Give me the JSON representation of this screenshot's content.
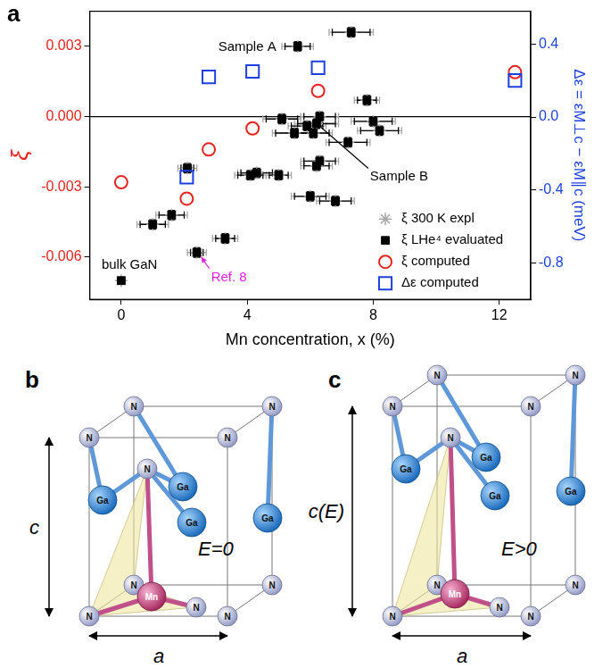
{
  "chart_data": {
    "type": "scatter",
    "panel_label": "a",
    "x_label": "Mn concentration, x (%)",
    "y_label": "ξ",
    "y2_label": "Δε = εM⊥c − εM∥c (meV)",
    "xlim": [
      -1,
      13
    ],
    "xticks": [
      0,
      4,
      8,
      12
    ],
    "ylim": [
      -0.0078,
      0.0045
    ],
    "yticks": [
      0.003,
      {
        "value": 0,
        "label": "0.000"
      },
      -0.003,
      -0.006
    ],
    "y2lim": [
      -1.0,
      0.58
    ],
    "y2ticks": [
      0.4,
      {
        "value": 0,
        "label": "0.0"
      },
      -0.4,
      -0.8
    ],
    "grid": false,
    "legend": "lower right",
    "reference_line": {
      "y": 0
    },
    "series": [
      {
        "name": "ξ 300 K expl",
        "color": "#a6a6a6",
        "marker": "star",
        "x": [
          0,
          1.0,
          1.6,
          2.1,
          2.4,
          3.3,
          4.1,
          4.3,
          5.0,
          5.1,
          5.5,
          5.6,
          5.9,
          6.1,
          6.2,
          6.3,
          6.0,
          6.2,
          6.3,
          6.8,
          7.2,
          7.3,
          7.8,
          8.0,
          8.2
        ],
        "values": [
          -0.007,
          -0.0046,
          -0.0042,
          -0.0022,
          -0.0058,
          -0.0052,
          -0.0025,
          -0.0024,
          -0.0025,
          -0.0001,
          -0.0007,
          0.003,
          -0.0004,
          -0.0007,
          -0.0003,
          0.0,
          -0.0034,
          -0.0021,
          -0.0019,
          -0.0036,
          -0.0011,
          0.0036,
          0.0007,
          -0.0002,
          -0.0006
        ],
        "x_error": [
          0,
          0.5,
          0.5,
          0.3,
          0.3,
          0.4,
          0.5,
          0.6,
          0.4,
          0.6,
          0.7,
          0.5,
          0.6,
          0.6,
          0.7,
          0.6,
          0.6,
          0.5,
          0.6,
          0.6,
          0.7,
          0.7,
          0.4,
          0.7,
          0.7
        ],
        "point_labels": [
          null,
          null,
          null,
          null,
          "Ref. 8",
          null,
          null,
          null,
          null,
          null,
          null,
          null,
          null,
          null,
          null,
          null,
          null,
          null,
          null,
          null,
          null,
          null,
          null,
          null,
          null
        ],
        "point_label_color": "#e020e0"
      },
      {
        "name": "ξ LHe⁴ evaluated",
        "color": "#000000",
        "marker": "filled_square",
        "x": [
          0,
          1.0,
          1.6,
          2.1,
          2.4,
          3.3,
          4.1,
          4.3,
          5.0,
          5.1,
          5.5,
          5.6,
          5.9,
          6.1,
          6.2,
          6.3,
          6.0,
          6.2,
          6.3,
          6.8,
          7.2,
          7.3,
          7.8,
          8.0,
          8.2
        ],
        "values": [
          -0.007,
          -0.0046,
          -0.0042,
          -0.0022,
          -0.0058,
          -0.0052,
          -0.0025,
          -0.0024,
          -0.0025,
          -0.0001,
          -0.0007,
          0.003,
          -0.0004,
          -0.0007,
          -0.0003,
          0.0,
          -0.0034,
          -0.0021,
          -0.0019,
          -0.0036,
          -0.0011,
          0.0036,
          0.0007,
          -0.0002,
          -0.0006
        ],
        "x_error": [
          0,
          0.4,
          0.4,
          0.2,
          0.2,
          0.3,
          0.4,
          0.5,
          0.3,
          0.5,
          0.6,
          0.4,
          0.5,
          0.5,
          0.6,
          0.5,
          0.5,
          0.4,
          0.5,
          0.5,
          0.6,
          0.6,
          0.3,
          0.6,
          0.6
        ],
        "y_error": [
          0.0001,
          0.0002,
          0.0002,
          0.0002,
          0.0002,
          0.0002,
          0.0002,
          0.0002,
          0.0002,
          0.0002,
          0.0002,
          0.0002,
          0.0002,
          0.0002,
          0.0002,
          0.0002,
          0.0002,
          0.0002,
          0.0002,
          0.0002,
          0.0002,
          0.0002,
          0.0002,
          0.0002,
          0.0002
        ],
        "point_labels": [
          "bulk GaN",
          null,
          null,
          null,
          null,
          null,
          null,
          null,
          null,
          null,
          null,
          "Sample A",
          null,
          null,
          "Sample B",
          null,
          null,
          null,
          null,
          null,
          null,
          null,
          null,
          null,
          null
        ],
        "point_label_color": "#000000"
      },
      {
        "name": "ξ computed",
        "color": "#e8231f",
        "marker": "open_circle",
        "x": [
          0,
          2.08,
          2.78,
          4.17,
          6.25,
          12.5
        ],
        "values": [
          -0.0028,
          -0.0035,
          -0.0014,
          -0.0005,
          0.0011,
          0.0019
        ]
      },
      {
        "name": "Δε computed",
        "color": "#1c3fe0",
        "marker": "open_square",
        "axis": "y2",
        "x": [
          2.08,
          2.78,
          4.17,
          6.25,
          12.5
        ],
        "values": [
          -0.33,
          0.22,
          0.25,
          0.27,
          0.2
        ]
      }
    ]
  },
  "diagrams": [
    {
      "panel_label": "b",
      "height_label": "c",
      "width_label": "a",
      "field_label": "E=0"
    },
    {
      "panel_label": "c",
      "height_label": "c(E)",
      "width_label": "a",
      "field_label": "E>0"
    }
  ],
  "atom_labels": {
    "nitrogen": "N",
    "gallium": "Ga",
    "manganese": "Mn"
  }
}
